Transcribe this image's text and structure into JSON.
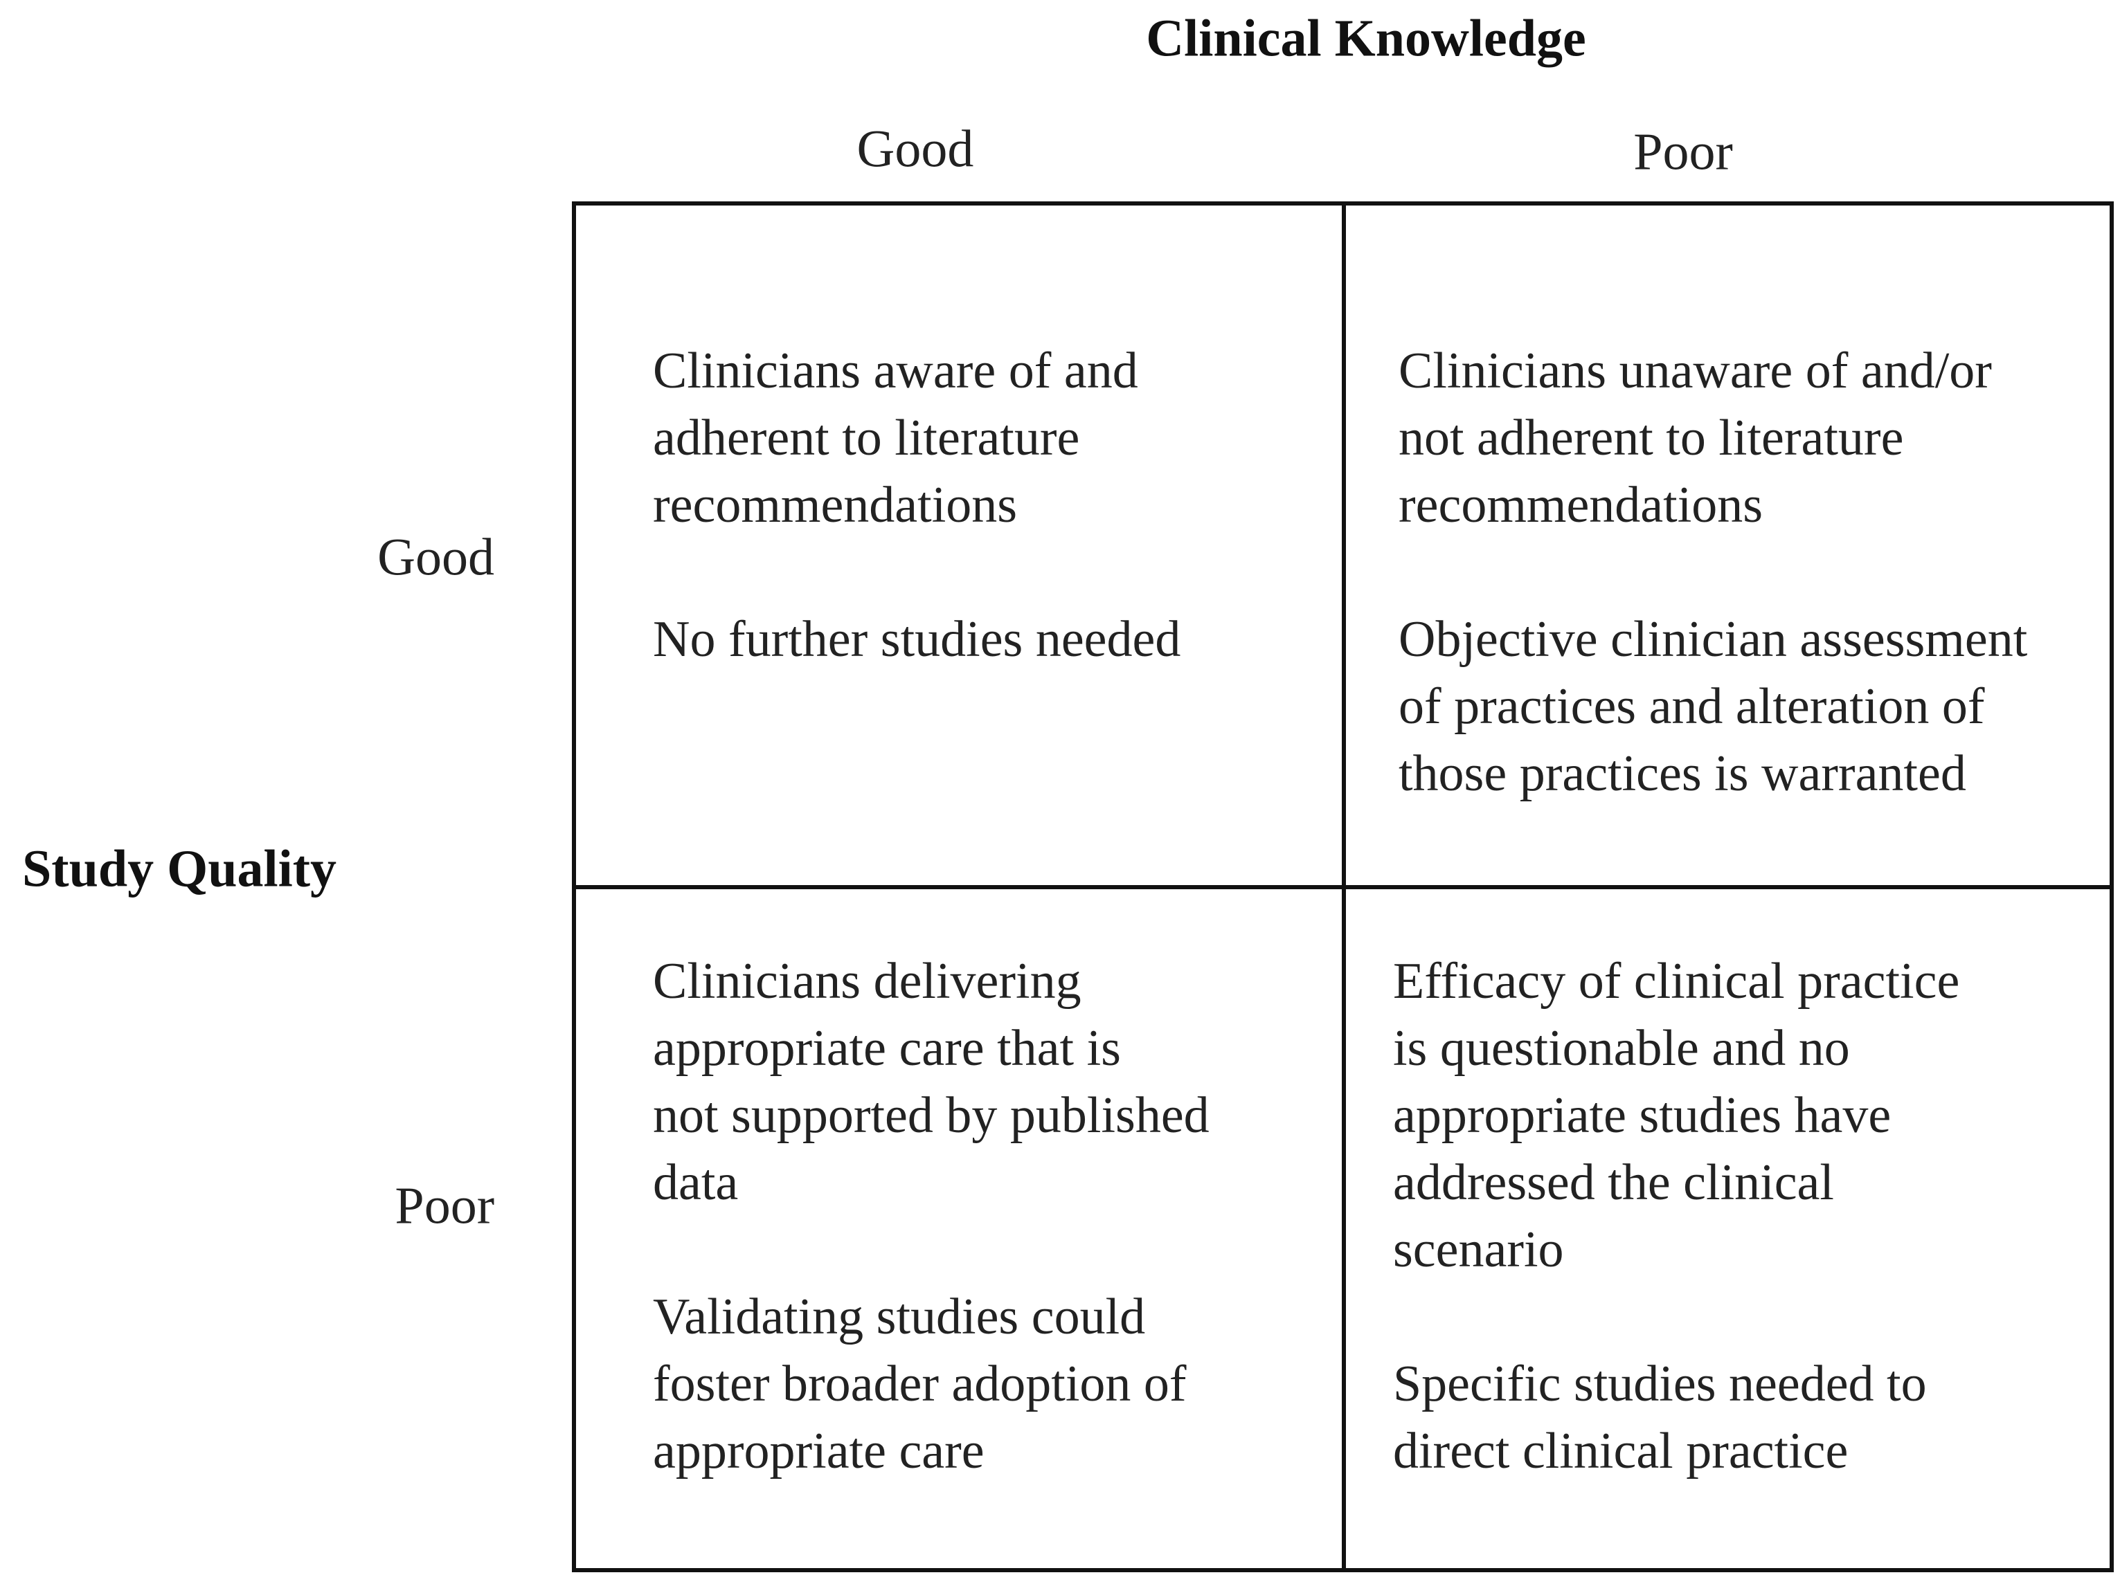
{
  "column_header": "Clinical Knowledge",
  "column_labels": [
    "Good",
    "Poor"
  ],
  "row_header": "Study Quality",
  "row_labels": [
    "Good",
    "Poor"
  ],
  "cells": [
    [
      [
        [
          "Clinicians aware of and",
          "adherent to literature",
          "recommendations"
        ],
        [
          "No further studies needed"
        ]
      ],
      [
        [
          "Clinicians unaware of and/or",
          "not adherent to literature",
          "recommendations"
        ],
        [
          "Objective clinician assessment",
          "of practices and alteration of",
          "those practices is warranted"
        ]
      ]
    ],
    [
      [
        [
          "Clinicians delivering",
          "appropriate care that is",
          "not supported by published",
          "data"
        ],
        [
          "Validating studies could",
          "foster broader adoption of",
          "appropriate care"
        ]
      ],
      [
        [
          "Efficacy of clinical practice",
          "is questionable and no",
          "appropriate studies have",
          "addressed the clinical",
          "scenario"
        ],
        [
          "Specific studies needed to",
          "direct clinical practice"
        ]
      ]
    ]
  ]
}
